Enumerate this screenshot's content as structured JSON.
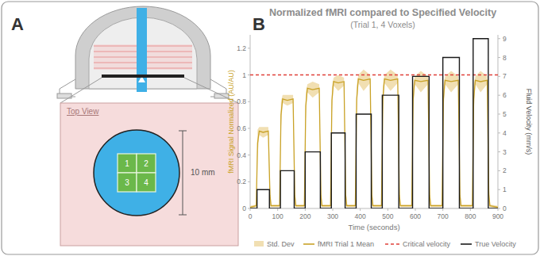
{
  "panels": [
    {
      "label": "A",
      "view_label": "Top View",
      "dimension_label": "10 mm",
      "voxels": [
        "1",
        "2",
        "3",
        "4"
      ]
    },
    {
      "label": "B"
    }
  ],
  "chart_data": {
    "type": "line",
    "title": "Normalized fMRI compared to Specified Velocity",
    "subtitle": "(Trial 1, 4 Voxels)",
    "x_label": "Time (seconds)",
    "y_label": "fMRI Signal Normalized (AU/AU)",
    "y2_label": "Fluid Velocity (mm/s)",
    "xlim": [
      0,
      900
    ],
    "xticks": [
      0,
      100,
      200,
      300,
      400,
      500,
      600,
      700,
      800,
      900
    ],
    "ylim": [
      0,
      1.3
    ],
    "yticks": [
      0,
      0.2,
      0.4,
      0.6,
      0.8,
      1,
      1.2
    ],
    "y2lim": [
      0,
      9.2
    ],
    "y2ticks": [
      0,
      1,
      2,
      3,
      4,
      5,
      6,
      7,
      8,
      9
    ],
    "grid": false,
    "legend": "bottom",
    "series": [
      {
        "name": "fMRI Trial 1 Mean",
        "color": "#c9a227",
        "error_name": "Std. Dev",
        "error_color": "#f1dfb2",
        "x": [
          0,
          22,
          27,
          33,
          47,
          66,
          72,
          76,
          107,
          112,
          118,
          135,
          156,
          162,
          166,
          197,
          202,
          208,
          227,
          251,
          257,
          261,
          292,
          297,
          303,
          320,
          341,
          347,
          351,
          382,
          387,
          393,
          412,
          436,
          442,
          446,
          477,
          482,
          488,
          510,
          536,
          542,
          546,
          587,
          592,
          598,
          620,
          646,
          652,
          656,
          697,
          702,
          708,
          730,
          756,
          762,
          766,
          807,
          812,
          818,
          837,
          861,
          867,
          871,
          900
        ],
        "values": [
          0.01,
          0.02,
          0.49,
          0.58,
          0.57,
          0.58,
          0.1,
          0.02,
          0.02,
          0.7,
          0.82,
          0.81,
          0.82,
          0.1,
          0.02,
          0.02,
          0.77,
          0.9,
          0.89,
          0.9,
          0.1,
          0.02,
          0.02,
          0.81,
          0.95,
          0.94,
          0.95,
          0.1,
          0.02,
          0.02,
          0.82,
          0.97,
          0.96,
          0.97,
          0.1,
          0.02,
          0.02,
          0.82,
          0.97,
          0.96,
          0.97,
          0.1,
          0.02,
          0.02,
          0.82,
          0.96,
          0.95,
          0.96,
          0.1,
          0.02,
          0.02,
          0.82,
          0.96,
          0.95,
          0.96,
          0.1,
          0.02,
          0.02,
          0.82,
          0.96,
          0.95,
          0.96,
          0.1,
          0.02,
          0.01
        ],
        "std_dev": [
          0.01,
          0.01,
          0.1,
          0.03,
          0.04,
          0.03,
          0.08,
          0.01,
          0.01,
          0.1,
          0.03,
          0.04,
          0.03,
          0.08,
          0.01,
          0.01,
          0.1,
          0.03,
          0.06,
          0.03,
          0.08,
          0.01,
          0.01,
          0.1,
          0.03,
          0.06,
          0.03,
          0.08,
          0.01,
          0.01,
          0.1,
          0.03,
          0.08,
          0.03,
          0.08,
          0.01,
          0.01,
          0.1,
          0.03,
          0.08,
          0.03,
          0.08,
          0.01,
          0.01,
          0.1,
          0.03,
          0.08,
          0.03,
          0.08,
          0.01,
          0.01,
          0.1,
          0.03,
          0.08,
          0.03,
          0.08,
          0.01,
          0.01,
          0.1,
          0.03,
          0.08,
          0.03,
          0.08,
          0.01,
          0.01
        ]
      },
      {
        "name": "Critical velocity",
        "color": "#e0403a",
        "line_style": "dashed",
        "x": [
          0,
          900
        ],
        "values": [
          1,
          1
        ]
      },
      {
        "name": "True Velocity",
        "color": "#1a1a1a",
        "axis": "y2",
        "x": [
          0,
          25,
          25,
          70,
          70,
          110,
          110,
          160,
          160,
          200,
          200,
          255,
          255,
          295,
          295,
          345,
          345,
          385,
          385,
          440,
          440,
          480,
          480,
          540,
          540,
          590,
          590,
          650,
          650,
          700,
          700,
          760,
          760,
          810,
          810,
          865,
          865,
          900
        ],
        "values": [
          0,
          0,
          1,
          1,
          0,
          0,
          2,
          2,
          0,
          0,
          3,
          3,
          0,
          0,
          4,
          4,
          0,
          0,
          5,
          5,
          0,
          0,
          6,
          6,
          0,
          0,
          7,
          7,
          0,
          0,
          8,
          8,
          0,
          0,
          9,
          9,
          0,
          0
        ]
      }
    ]
  }
}
